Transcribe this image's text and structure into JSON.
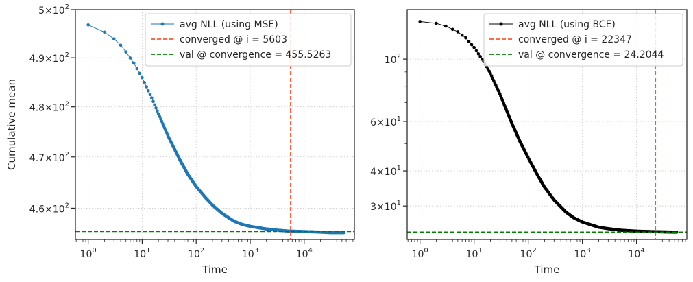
{
  "chart_data": [
    {
      "type": "line",
      "xscale": "log",
      "yscale": "log",
      "xlabel": "Time",
      "ylabel": "Cumulative mean",
      "xlim": [
        0.58,
        85000
      ],
      "ylim": [
        454,
        500
      ],
      "xticks": [
        1,
        10,
        100,
        1000,
        10000
      ],
      "xtick_labels": [
        {
          "base": "10",
          "exp": "0"
        },
        {
          "base": "10",
          "exp": "1"
        },
        {
          "base": "10",
          "exp": "2"
        },
        {
          "base": "10",
          "exp": "3"
        },
        {
          "base": "10",
          "exp": "4"
        }
      ],
      "yticks": [
        460,
        470,
        480,
        490,
        500
      ],
      "ytick_labels": [
        {
          "mant": "4.6",
          "base": "10",
          "exp": "2"
        },
        {
          "mant": "4.7",
          "base": "10",
          "exp": "2"
        },
        {
          "mant": "4.8",
          "base": "10",
          "exp": "2"
        },
        {
          "mant": "4.9",
          "base": "10",
          "exp": "2"
        },
        {
          "mant": "5",
          "base": "10",
          "exp": "2"
        }
      ],
      "grid": true,
      "legend_position": "top-right",
      "series": [
        {
          "name": "avg NLL (using MSE)",
          "color": "#1f77b4",
          "x_range": [
            1,
            55000
          ],
          "y_start": 496.8,
          "y_end": 455.3,
          "points": [
            [
              0.58,
              496.8
            ],
            [
              1,
              496.8
            ],
            [
              1.5,
              496.2
            ],
            [
              2,
              495.3
            ],
            [
              3,
              493.9
            ],
            [
              4,
              492.6
            ],
            [
              5,
              491.2
            ],
            [
              7,
              488.9
            ],
            [
              10,
              485.9
            ],
            [
              15,
              481.8
            ],
            [
              20,
              478.6
            ],
            [
              30,
              474.2
            ],
            [
              50,
              469.4
            ],
            [
              70,
              466.6
            ],
            [
              100,
              464.2
            ],
            [
              150,
              462.0
            ],
            [
              200,
              460.6
            ],
            [
              300,
              459.0
            ],
            [
              500,
              457.5
            ],
            [
              700,
              456.9
            ],
            [
              1000,
              456.5
            ],
            [
              2000,
              456.0
            ],
            [
              3000,
              455.8
            ],
            [
              5000,
              455.6
            ],
            [
              10000,
              455.5
            ],
            [
              20000,
              455.4
            ],
            [
              30000,
              455.3
            ],
            [
              55000,
              455.3
            ]
          ]
        },
        {
          "name": "converged @ i = 5603",
          "color": "#ff5733",
          "style": "dashed",
          "orientation": "vertical",
          "value": 5603
        },
        {
          "name": "val @ convergence = 455.5263",
          "color": "#008000",
          "style": "dashed",
          "orientation": "horizontal",
          "value": 455.5263
        }
      ]
    },
    {
      "type": "line",
      "xscale": "log",
      "yscale": "log",
      "xlabel": "Time",
      "ylabel": "",
      "xlim": [
        0.58,
        85000
      ],
      "ylim": [
        22.8,
        150
      ],
      "xticks": [
        1,
        10,
        100,
        1000,
        10000
      ],
      "xtick_labels": [
        {
          "base": "10",
          "exp": "0"
        },
        {
          "base": "10",
          "exp": "1"
        },
        {
          "base": "10",
          "exp": "2"
        },
        {
          "base": "10",
          "exp": "3"
        },
        {
          "base": "10",
          "exp": "4"
        }
      ],
      "yticks": [
        30,
        40,
        60,
        100
      ],
      "ytick_labels": [
        {
          "mant": "3",
          "base": "10",
          "exp": "1"
        },
        {
          "mant": "4",
          "base": "10",
          "exp": "1"
        },
        {
          "mant": "6",
          "base": "10",
          "exp": "1"
        },
        {
          "mant": "",
          "base": "10",
          "exp": "2"
        }
      ],
      "y_minor_ticks": [
        50,
        70,
        80,
        90
      ],
      "grid": true,
      "legend_position": "top-right",
      "series": [
        {
          "name": "avg NLL (using BCE)",
          "color": "#000000",
          "x_range": [
            1,
            55000
          ],
          "y_start": 136,
          "y_end": 24.2,
          "points": [
            [
              0.58,
              136
            ],
            [
              1,
              136
            ],
            [
              2,
              134
            ],
            [
              3,
              131
            ],
            [
              5,
              125
            ],
            [
              7,
              119
            ],
            [
              10,
              110
            ],
            [
              15,
              98
            ],
            [
              20,
              89
            ],
            [
              30,
              75
            ],
            [
              50,
              59
            ],
            [
              70,
              51
            ],
            [
              100,
              44.5
            ],
            [
              150,
              38.5
            ],
            [
              200,
              35
            ],
            [
              300,
              31.5
            ],
            [
              500,
              28.5
            ],
            [
              700,
              27.2
            ],
            [
              1000,
              26.3
            ],
            [
              2000,
              25.2
            ],
            [
              3000,
              24.9
            ],
            [
              5000,
              24.6
            ],
            [
              10000,
              24.4
            ],
            [
              20000,
              24.3
            ],
            [
              55000,
              24.2
            ]
          ]
        },
        {
          "name": "converged @ i = 22347",
          "color": "#ff5733",
          "style": "dashed",
          "orientation": "vertical",
          "value": 22347
        },
        {
          "name": "val @ convergence = 24.2044",
          "color": "#008000",
          "style": "dashed",
          "orientation": "horizontal",
          "value": 24.2044
        }
      ]
    }
  ]
}
